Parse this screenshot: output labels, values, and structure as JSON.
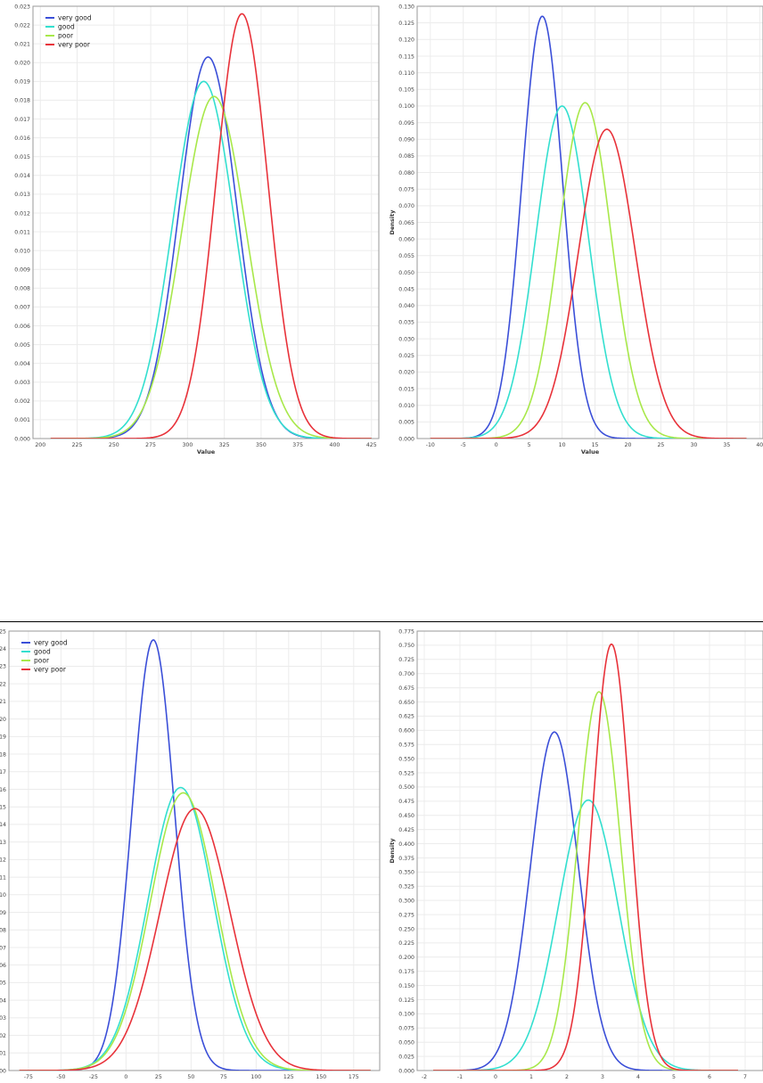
{
  "chart_data": [
    {
      "type": "line",
      "xlabel": "Value",
      "ylabel": "",
      "xlim": [
        195,
        430
      ],
      "ylim": [
        0,
        0.023
      ],
      "xticks": [
        200,
        225,
        250,
        275,
        300,
        325,
        350,
        375,
        400,
        425
      ],
      "yticks_step": 0.001,
      "y_decimals": 3,
      "grid": true,
      "legend_position": "top-left",
      "x_range": [
        207,
        425
      ],
      "series": [
        {
          "name": "very good",
          "color": "#3b4fd8",
          "mean": 314,
          "sd": 19.6,
          "peak": 0.0203
        },
        {
          "name": "good",
          "color": "#33dfcf",
          "mean": 311,
          "sd": 21.0,
          "peak": 0.019
        },
        {
          "name": "poor",
          "color": "#a8e84a",
          "mean": 318,
          "sd": 21.9,
          "peak": 0.0182
        },
        {
          "name": "very poor",
          "color": "#e8323a",
          "mean": 337,
          "sd": 17.6,
          "peak": 0.0226
        }
      ]
    },
    {
      "type": "line",
      "xlabel": "Value",
      "ylabel": "Density",
      "xlim": [
        -12,
        40.5
      ],
      "ylim": [
        0,
        0.13
      ],
      "xticks": [
        -10,
        -5,
        0,
        5,
        10,
        15,
        20,
        25,
        30,
        35,
        40
      ],
      "yticks_step": 0.005,
      "y_decimals": 3,
      "grid": true,
      "legend_position": "none",
      "x_range": [
        -10,
        38
      ],
      "series": [
        {
          "name": "very good",
          "color": "#3b4fd8",
          "mean": 7.0,
          "sd": 3.1,
          "peak": 0.127
        },
        {
          "name": "good",
          "color": "#33dfcf",
          "mean": 10.0,
          "sd": 4.0,
          "peak": 0.1
        },
        {
          "name": "poor",
          "color": "#a8e84a",
          "mean": 13.5,
          "sd": 3.95,
          "peak": 0.101
        },
        {
          "name": "very poor",
          "color": "#e8323a",
          "mean": 16.8,
          "sd": 4.3,
          "peak": 0.093
        }
      ]
    },
    {
      "type": "line",
      "xlabel": "Value",
      "ylabel": "",
      "xlim": [
        -90,
        195
      ],
      "ylim": [
        0,
        0.025
      ],
      "xticks": [
        -75,
        -50,
        -25,
        0,
        25,
        50,
        75,
        100,
        125,
        150,
        175
      ],
      "yticks_step": 0.001,
      "y_decimals": 3,
      "grid": true,
      "legend_position": "top-left",
      "x_range": [
        -82,
        188
      ],
      "series": [
        {
          "name": "very good",
          "color": "#3b4fd8",
          "mean": 21,
          "sd": 16.3,
          "peak": 0.0245
        },
        {
          "name": "good",
          "color": "#33dfcf",
          "mean": 42,
          "sd": 24.9,
          "peak": 0.0161
        },
        {
          "name": "poor",
          "color": "#a8e84a",
          "mean": 44,
          "sd": 25.3,
          "peak": 0.0158
        },
        {
          "name": "very poor",
          "color": "#e8323a",
          "mean": 53,
          "sd": 26.9,
          "peak": 0.0149
        }
      ]
    },
    {
      "type": "line",
      "xlabel": "Value",
      "ylabel": "Density",
      "xlim": [
        -2.2,
        7.5
      ],
      "ylim": [
        0,
        0.775
      ],
      "xticks": [
        -2,
        -1,
        0,
        1,
        2,
        3,
        4,
        5,
        6,
        7
      ],
      "yticks_step": 0.025,
      "y_decimals": 3,
      "grid": true,
      "legend_position": "none",
      "x_range": [
        -1.75,
        6.8
      ],
      "series": [
        {
          "name": "very good",
          "color": "#3b4fd8",
          "mean": 1.65,
          "sd": 0.67,
          "peak": 0.597
        },
        {
          "name": "good",
          "color": "#33dfcf",
          "mean": 2.6,
          "sd": 0.84,
          "peak": 0.477
        },
        {
          "name": "poor",
          "color": "#a8e84a",
          "mean": 2.9,
          "sd": 0.6,
          "peak": 0.668
        },
        {
          "name": "very poor",
          "color": "#e8323a",
          "mean": 3.25,
          "sd": 0.53,
          "peak": 0.752
        }
      ]
    }
  ]
}
